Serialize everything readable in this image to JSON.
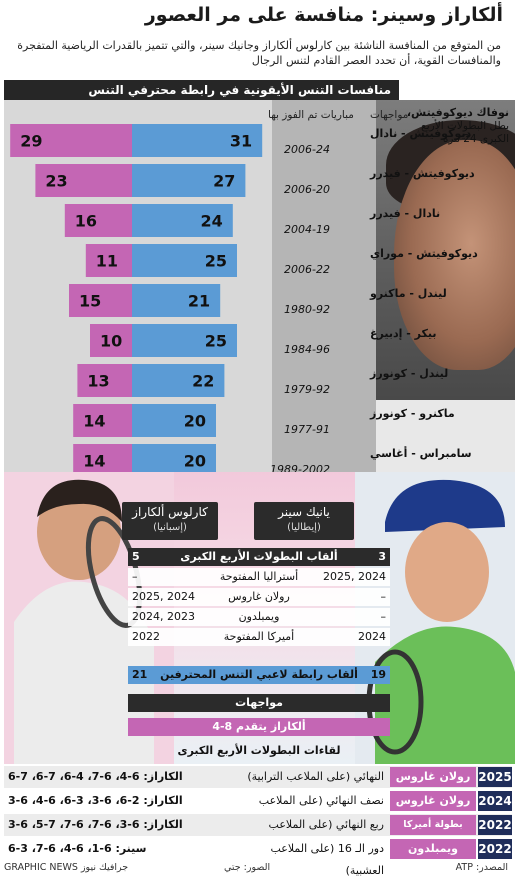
{
  "title": "ألكاراز وسينر: منافسة على مر العصور",
  "subtitle": "من المتوقع من المنافسة الناشئة بين كارلوس ألكاراز وجانيك سينر، والتي تتميز بالقدرات الرياضية المتفجرة والمنافسات القوية، أن تحدد العصر القادم لتنس الرجال",
  "section_header": "منافسات التنس الأيقونية في رابطة محترفي التنس",
  "col_matches": "مواجهات",
  "col_wins": "مباريات تم الفوز بها",
  "photo_caption": {
    "name": "نوفاك ديوكوفيتش،",
    "line1": "بطل البطولات الأربع",
    "line2": "الكبرى 24 مرة"
  },
  "watermark": "GRAPHIC NEWS",
  "colors": {
    "blue": "#5b9bd5",
    "pink": "#c466b4",
    "dark": "#2b2b2b",
    "navy": "#1f2d5a"
  },
  "chart_data": {
    "type": "bar",
    "orientation": "horizontal-diverging",
    "categories": [
      "ديوكوفيتش - نادال",
      "ديوكوفيتش - فيدرر",
      "نادال - فيدرر",
      "ديوكوفيتش - موراي",
      "ليندل - ماكنرو",
      "بيكر - إدبيرغ",
      "ليندل - كونورز",
      "ماكنرو - كونورز",
      "سامبراس - أغاسي"
    ],
    "periods": [
      "2006-24",
      "2006-20",
      "2004-19",
      "2006-22",
      "1980-92",
      "1984-96",
      "1979-92",
      "1977-91",
      "1989-2002"
    ],
    "series": [
      {
        "values": [
          31,
          27,
          24,
          25,
          21,
          25,
          22,
          20,
          20
        ]
      },
      {
        "values": [
          29,
          23,
          16,
          11,
          15,
          10,
          13,
          14,
          14
        ]
      }
    ]
  },
  "players": {
    "left": {
      "name": "كارلوس ألكاراز",
      "country": "(إسبانيا)"
    },
    "right": {
      "name": "يانيك سينر",
      "country": "(إيطاليا)"
    }
  },
  "comparison": {
    "slam_label": "ألقاب البطولات الأربع الكبرى",
    "alcaraz_slams": "5",
    "sinner_slams": "3",
    "rows": [
      {
        "event": "أستراليا المفتوحة",
        "alcaraz": "–",
        "sinner": "2025, 2024"
      },
      {
        "event": "رولان غاروس",
        "alcaraz": "2025, 2024",
        "sinner": "–"
      },
      {
        "event": "ويمبلدون",
        "alcaraz": "2024, 2023",
        "sinner": "–"
      },
      {
        "event": "أميركا المفتوحة",
        "alcaraz": "2022",
        "sinner": "2024"
      }
    ],
    "atp_label": "ألقاب رابطة لاعبي التنس المحترفين",
    "alcaraz_atp": "21",
    "sinner_atp": "19",
    "h2h_label": "مواجهات",
    "h2h_value": "ألكاراز يتقدم 8-4",
    "slam_meetings_label": "لقاءات البطولات الأربع الكبرى"
  },
  "meetings": [
    {
      "year": "2025",
      "event": "رولان غاروس",
      "round": "النهائي (على الملاعب الترابية)",
      "score": "الكاراز: 6-4، 6-7، 4-6، 7-6، 7-6"
    },
    {
      "year": "2024",
      "event": "رولان غاروس",
      "round": "نصف النهائي (على الملاعب الترابية)",
      "score": "الكاراز: 2-6، 6-3، 3-6، 6-4، 6-3"
    },
    {
      "year": "2022",
      "event": "بطولة أميركا المفتوحة",
      "round": "ربع النهائي (على الملاعب الصلبة)",
      "score": "الكاراز: 6-3، 6-7، 6-7، 7-5، 6-3"
    },
    {
      "year": "2022",
      "event": "ويمبلدون",
      "round": "دور الـ 16 (على الملاعب العشبية)",
      "score": "سينر: 6-1، 6-4، 6-7، 3-6"
    }
  ],
  "footer": {
    "source": "المصدر: ATP",
    "photos": "الصور: جتي",
    "credit": "GRAPHIC NEWS جرافيك نيوز"
  }
}
